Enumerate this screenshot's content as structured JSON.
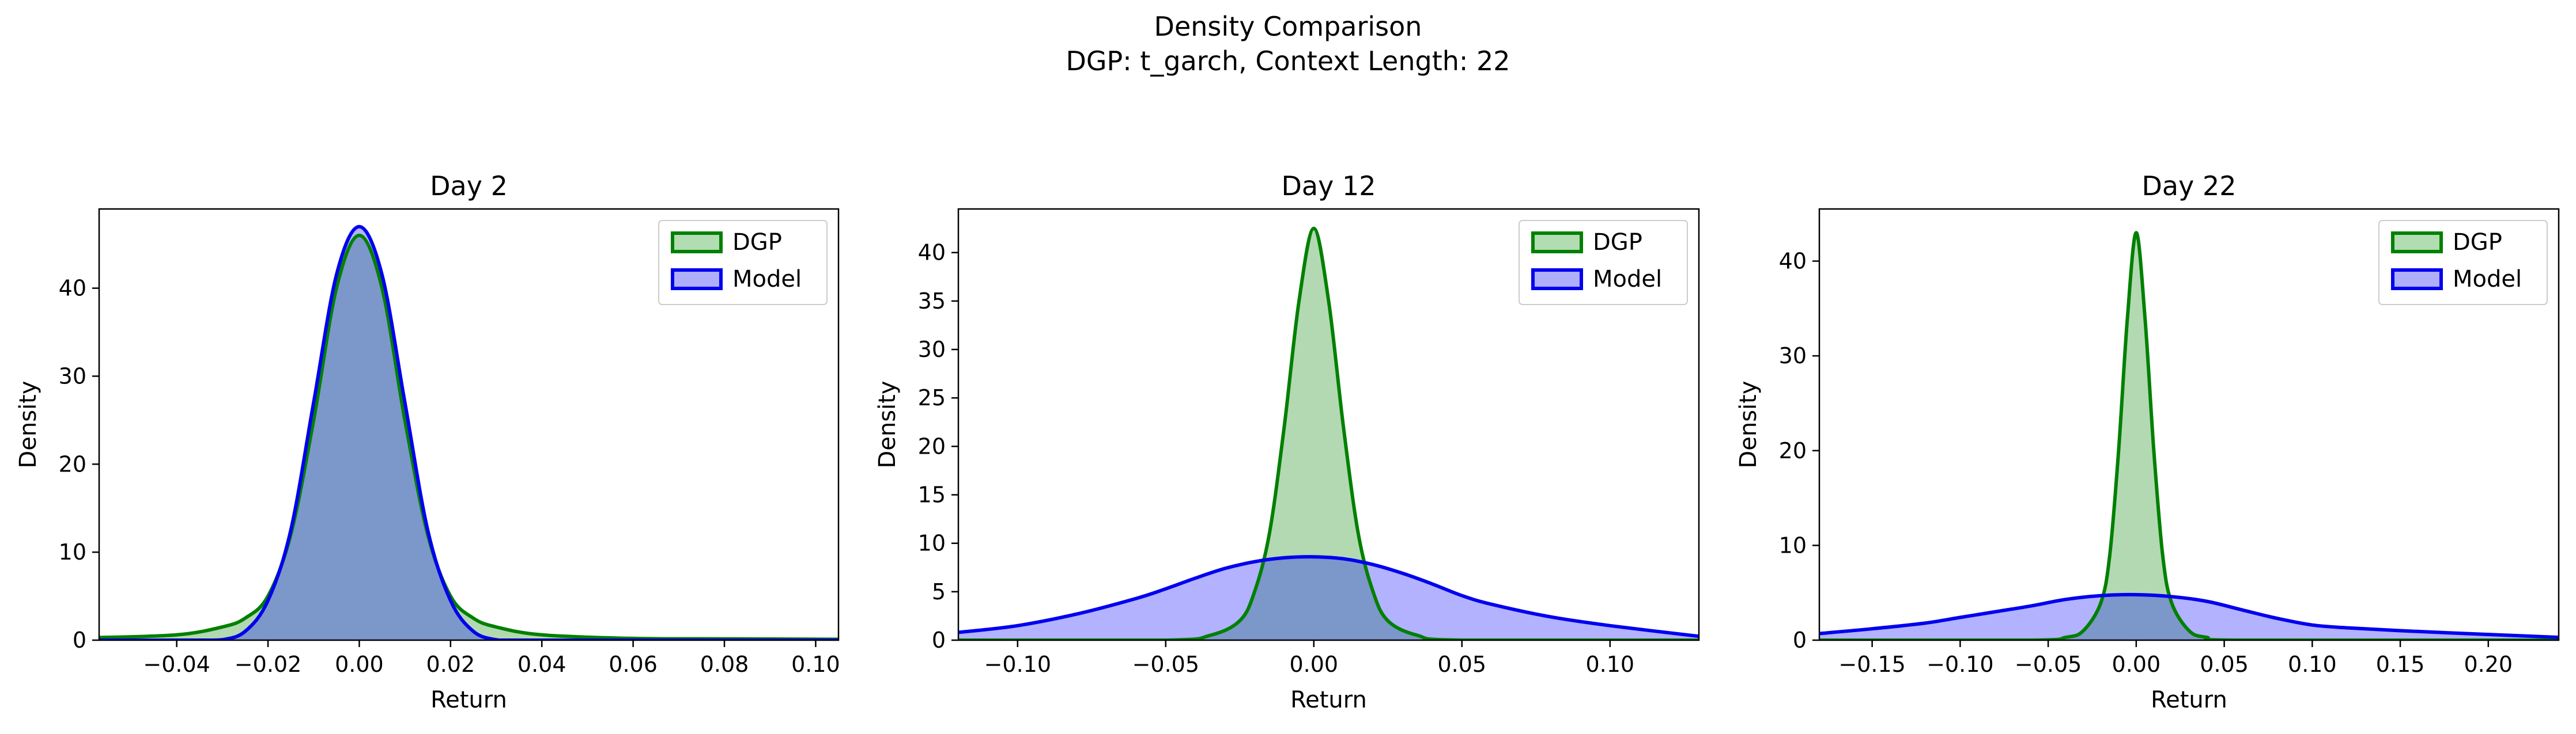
{
  "figure": {
    "title": "Density Comparison",
    "subtitle": "DGP: t_garch, Context Length: 22"
  },
  "colors": {
    "dgp_line": "#008000",
    "dgp_fill": "#b2dcb2",
    "model_line": "#0000ee",
    "model_fill": "#aeaefb",
    "overlap_fill": "#7e9acb"
  },
  "chart_data": [
    {
      "type": "area",
      "title": "Day 2",
      "xlabel": "Return",
      "ylabel": "Density",
      "xlim": [
        -0.057,
        0.105
      ],
      "ylim": [
        0,
        49
      ],
      "xticks": [
        -0.04,
        -0.02,
        0.0,
        0.02,
        0.04,
        0.06,
        0.08,
        0.1
      ],
      "xtick_labels": [
        "−0.04",
        "−0.02",
        "0.00",
        "0.02",
        "0.04",
        "0.06",
        "0.08",
        "0.10"
      ],
      "yticks": [
        0,
        10,
        20,
        30,
        40
      ],
      "ytick_labels": [
        "0",
        "10",
        "20",
        "30",
        "40"
      ],
      "legend_position": "top-right",
      "series": [
        {
          "name": "DGP",
          "x": [
            -0.057,
            -0.04,
            -0.03,
            -0.025,
            -0.02,
            -0.015,
            -0.01,
            -0.005,
            0.0,
            0.005,
            0.01,
            0.015,
            0.02,
            0.025,
            0.03,
            0.04,
            0.06,
            0.08,
            0.105
          ],
          "y": [
            0.3,
            0.6,
            1.5,
            2.5,
            5.0,
            12.0,
            25.0,
            40.0,
            46.0,
            40.0,
            25.0,
            12.0,
            5.0,
            2.5,
            1.5,
            0.6,
            0.2,
            0.15,
            0.1
          ]
        },
        {
          "name": "Model",
          "x": [
            -0.057,
            -0.035,
            -0.03,
            -0.025,
            -0.02,
            -0.015,
            -0.01,
            -0.005,
            0.0,
            0.005,
            0.01,
            0.015,
            0.02,
            0.025,
            0.03,
            0.035,
            0.105
          ],
          "y": [
            0.0,
            0.0,
            0.05,
            1.0,
            4.5,
            12.5,
            27.0,
            41.5,
            47.0,
            41.5,
            27.0,
            12.5,
            4.5,
            1.0,
            0.05,
            0.0,
            0.0
          ]
        }
      ]
    },
    {
      "type": "area",
      "title": "Day 12",
      "xlabel": "Return",
      "ylabel": "Density",
      "xlim": [
        -0.12,
        0.13
      ],
      "ylim": [
        0,
        44.5
      ],
      "xticks": [
        -0.1,
        -0.05,
        0.0,
        0.05,
        0.1
      ],
      "xtick_labels": [
        "−0.10",
        "−0.05",
        "0.00",
        "0.05",
        "0.10"
      ],
      "yticks": [
        0,
        5,
        10,
        15,
        20,
        25,
        30,
        35,
        40
      ],
      "ytick_labels": [
        "0",
        "5",
        "10",
        "15",
        "20",
        "25",
        "30",
        "35",
        "40"
      ],
      "legend_position": "top-right",
      "series": [
        {
          "name": "DGP",
          "x": [
            -0.12,
            -0.05,
            -0.035,
            -0.025,
            -0.02,
            -0.015,
            -0.01,
            -0.005,
            0.0,
            0.005,
            0.01,
            0.015,
            0.02,
            0.025,
            0.035,
            0.05,
            0.13
          ],
          "y": [
            0.0,
            0.0,
            0.5,
            2.0,
            5.0,
            11.0,
            22.0,
            35.0,
            42.5,
            35.0,
            22.0,
            11.0,
            5.0,
            2.0,
            0.5,
            0.0,
            0.0
          ]
        },
        {
          "name": "Model",
          "x": [
            -0.12,
            -0.1,
            -0.08,
            -0.06,
            -0.05,
            -0.04,
            -0.03,
            -0.02,
            -0.01,
            0.0,
            0.01,
            0.02,
            0.03,
            0.04,
            0.05,
            0.06,
            0.08,
            0.1,
            0.13
          ],
          "y": [
            0.8,
            1.5,
            2.7,
            4.3,
            5.3,
            6.4,
            7.4,
            8.1,
            8.5,
            8.6,
            8.4,
            7.8,
            6.9,
            5.8,
            4.6,
            3.7,
            2.4,
            1.5,
            0.4
          ]
        }
      ]
    },
    {
      "type": "area",
      "title": "Day 22",
      "xlabel": "Return",
      "ylabel": "Density",
      "xlim": [
        -0.18,
        0.24
      ],
      "ylim": [
        0,
        45.5
      ],
      "xticks": [
        -0.15,
        -0.1,
        -0.05,
        0.0,
        0.05,
        0.1,
        0.15,
        0.2
      ],
      "xtick_labels": [
        "−0.15",
        "−0.10",
        "−0.05",
        "0.00",
        "0.05",
        "0.10",
        "0.15",
        "0.20"
      ],
      "yticks": [
        0,
        10,
        20,
        30,
        40
      ],
      "ytick_labels": [
        "0",
        "10",
        "20",
        "30",
        "40"
      ],
      "legend_position": "top-right",
      "series": [
        {
          "name": "DGP",
          "x": [
            -0.18,
            -0.06,
            -0.04,
            -0.03,
            -0.02,
            -0.015,
            -0.01,
            -0.005,
            0.0,
            0.005,
            0.01,
            0.015,
            0.02,
            0.03,
            0.04,
            0.06,
            0.24
          ],
          "y": [
            0.0,
            0.0,
            0.3,
            1.0,
            4.0,
            9.0,
            20.0,
            34.0,
            43.0,
            34.0,
            20.0,
            9.0,
            4.0,
            1.0,
            0.3,
            0.0,
            0.0
          ]
        },
        {
          "name": "Model",
          "x": [
            -0.18,
            -0.15,
            -0.12,
            -0.1,
            -0.08,
            -0.06,
            -0.04,
            -0.02,
            0.0,
            0.02,
            0.04,
            0.06,
            0.08,
            0.1,
            0.12,
            0.15,
            0.2,
            0.24
          ],
          "y": [
            0.7,
            1.2,
            1.8,
            2.4,
            3.0,
            3.6,
            4.3,
            4.7,
            4.8,
            4.6,
            4.1,
            3.2,
            2.3,
            1.6,
            1.3,
            1.0,
            0.6,
            0.3
          ]
        }
      ]
    }
  ]
}
